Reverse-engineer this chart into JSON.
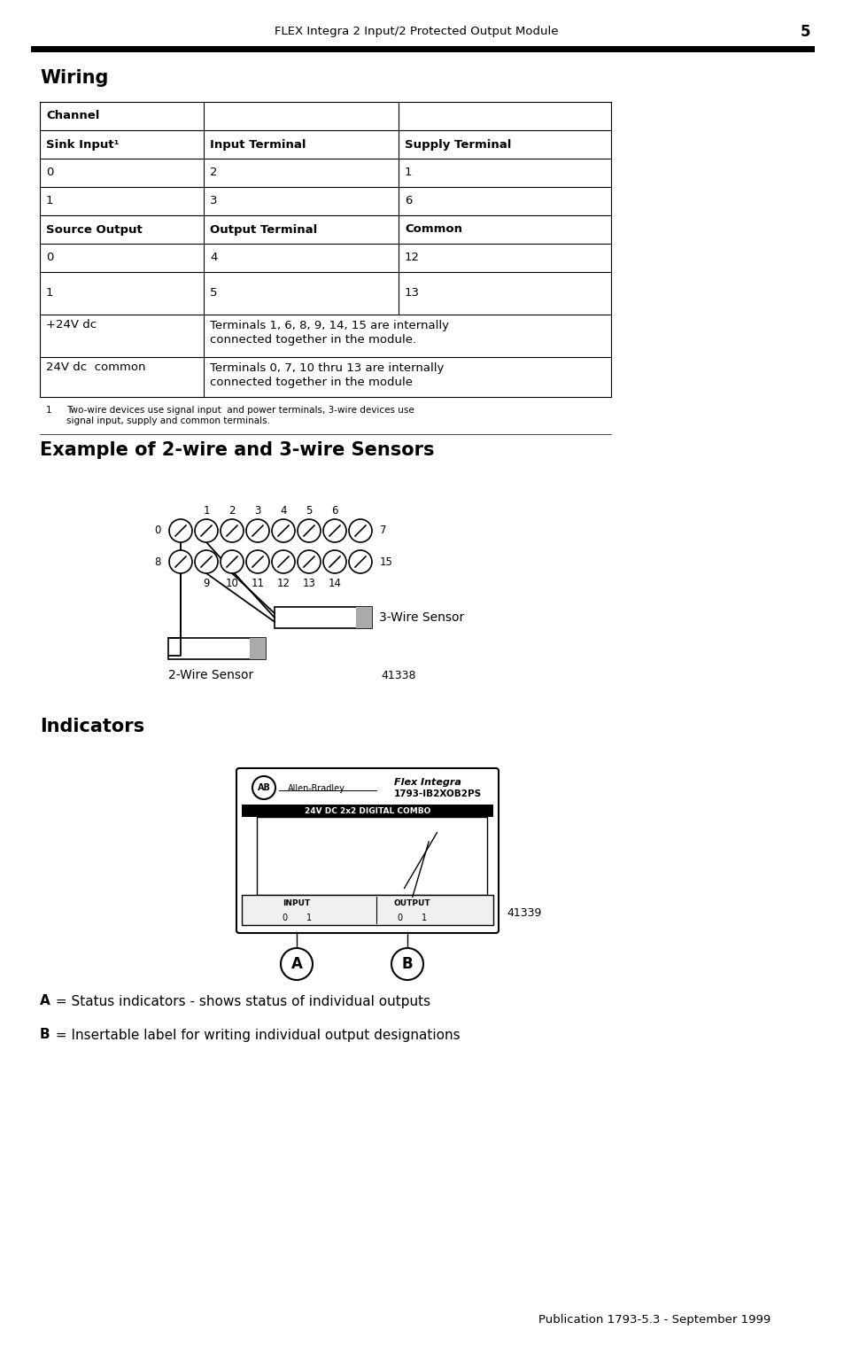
{
  "page_title": "FLEX Integra 2 Input/2 Protected Output Module",
  "page_number": "5",
  "section1_title": "Wiring",
  "table_col1_header": "Channel",
  "table_row2_col1": "Sink Input¹",
  "table_row2_col2": "Input Terminal",
  "table_row2_col3": "Supply Terminal",
  "table_row3": [
    "0",
    "2",
    "1"
  ],
  "table_row4": [
    "1",
    "3",
    "6"
  ],
  "table_row5_col1": "Source Output",
  "table_row5_col2": "Output Terminal",
  "table_row5_col3": "Common",
  "table_row6": [
    "0",
    "4",
    "12"
  ],
  "table_row7": [
    "1",
    "5",
    "13"
  ],
  "table_row8_col1": "+24V dc",
  "table_row8_line1": "Terminals 1, 6, 8, 9, 14, 15 are internally",
  "table_row8_line2": "connected together in the module.",
  "table_row9_col1": "24V dc  common",
  "table_row9_line1": "Terminals 0, 7, 10 thru 13 are internally",
  "table_row9_line2": "connected together in the module",
  "footnote_num": "1",
  "footnote_text": "Two-wire devices use signal input  and power terminals, 3-wire devices use\nsignal input, supply and common terminals.",
  "section2_title": "Example of 2-wire and 3-wire Sensors",
  "sensor_labels_top": [
    "1",
    "2",
    "3",
    "4",
    "5",
    "6"
  ],
  "sensor_labels_left_row1": "0",
  "sensor_labels_right_row1": "7",
  "sensor_labels_left_row2": "8",
  "sensor_labels_right_row2": "15",
  "sensor_labels_bottom": [
    "9",
    "10",
    "11",
    "12",
    "13",
    "14"
  ],
  "label_3wire": "3-Wire Sensor",
  "label_2wire": "2-Wire Sensor",
  "fig_number1": "41338",
  "section3_title": "Indicators",
  "device_brand": "Allen-Bradley",
  "device_logo": "AB",
  "device_flex": "Flex Integra",
  "device_model": "1793-IB2XOB2PS",
  "device_type": "24V DC 2x2 DIGITAL COMBO",
  "device_input": "INPUT",
  "device_output": "OUTPUT",
  "device_ch_labels": [
    "0",
    "1",
    "0",
    "1"
  ],
  "label_A_bold": "A",
  "label_A_rest": " = Status indicators - shows status of individual outputs",
  "label_B_bold": "B",
  "label_B_rest": " = Insertable label for writing individual output designations",
  "fig_number2": "41339",
  "publication": "Publication 1793-5.3 - September 1999",
  "bg_color": "#ffffff",
  "text_color": "#000000"
}
